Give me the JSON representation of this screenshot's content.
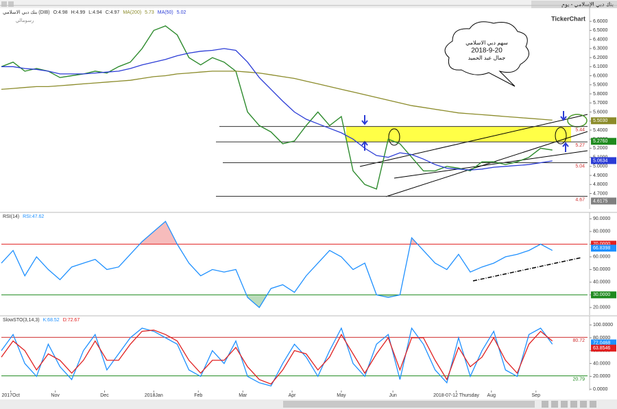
{
  "window": {
    "title": "بنك دبي الإسلامي - يوم",
    "brand": "TickerChart",
    "toolbar": "رسومالي"
  },
  "chart_data": [
    {
      "type": "line",
      "ohlc_labels": [
        "O:4.98",
        "H:4.99",
        "L:4.94",
        "C:4.97"
      ],
      "annotation": [
        "سهم دبي الاسلامي",
        "2018-9-20",
        "جمال عبد الحميد"
      ],
      "x": [
        0,
        5,
        10,
        15,
        20,
        25,
        30,
        35,
        40,
        45,
        50,
        55,
        60,
        65,
        70,
        75,
        80,
        85,
        90,
        95,
        100,
        105,
        110,
        115,
        120,
        125,
        130,
        135,
        140,
        145,
        150,
        155,
        160,
        165,
        170,
        175,
        180,
        185,
        190,
        195,
        200,
        205,
        210,
        215,
        220,
        225,
        230,
        235
      ],
      "xlim": [
        0,
        250
      ],
      "ylim": [
        4.53,
        6.76
      ],
      "yticks": [
        {
          "value": 4.7,
          "label": "4.7000"
        },
        {
          "value": 4.8,
          "label": "4.8000"
        },
        {
          "value": 4.9,
          "label": "4.9000"
        },
        {
          "value": 5.0,
          "label": "5.0000"
        },
        {
          "value": 5.1,
          "label": "5.1000"
        },
        {
          "value": 5.2,
          "label": "5.2000"
        },
        {
          "value": 5.3,
          "label": "5.3000"
        },
        {
          "value": 5.4,
          "label": "5.4000"
        },
        {
          "value": 5.5,
          "label": "5.5000"
        },
        {
          "value": 5.6,
          "label": "5.6000"
        },
        {
          "value": 5.7,
          "label": "5.7000"
        },
        {
          "value": 5.8,
          "label": "5.8000"
        },
        {
          "value": 5.9,
          "label": "5.9000"
        },
        {
          "value": 6.0,
          "label": "6.0000"
        },
        {
          "value": 6.1,
          "label": "6.1000"
        },
        {
          "value": 6.2,
          "label": "6.2000"
        },
        {
          "value": 6.3,
          "label": "6.3000"
        },
        {
          "value": 6.4,
          "label": "6.4000"
        },
        {
          "value": 6.5,
          "label": "6.5000"
        },
        {
          "value": 6.6,
          "label": "6.6000"
        }
      ],
      "series": [
        {
          "name": "بنك دبي الاسلامي (DIB)",
          "color": "#2e8b2e",
          "values": [
            6.1,
            6.15,
            6.05,
            6.08,
            6.05,
            5.98,
            6.0,
            6.02,
            6.05,
            6.03,
            6.1,
            6.15,
            6.3,
            6.5,
            6.55,
            6.45,
            6.2,
            6.12,
            6.2,
            6.15,
            6.05,
            5.6,
            5.45,
            5.38,
            5.25,
            5.28,
            5.45,
            5.6,
            5.45,
            5.55,
            4.95,
            4.8,
            4.75,
            5.3,
            5.25,
            5.1,
            4.95,
            4.95,
            5.0,
            4.98,
            4.95,
            5.05,
            5.05,
            5.02,
            5.05,
            5.1,
            5.2,
            5.18
          ]
        },
        {
          "name": "MA(200)",
          "legend_label": "5.73",
          "color": "#8b8b2a",
          "values": [
            5.85,
            5.86,
            5.87,
            5.88,
            5.88,
            5.89,
            5.9,
            5.91,
            5.92,
            5.93,
            5.94,
            5.95,
            5.97,
            5.99,
            6.0,
            6.02,
            6.03,
            6.04,
            6.05,
            6.05,
            6.05,
            6.04,
            6.03,
            6.01,
            5.99,
            5.97,
            5.94,
            5.91,
            5.88,
            5.85,
            5.82,
            5.79,
            5.76,
            5.73,
            5.7,
            5.67,
            5.65,
            5.63,
            5.61,
            5.59,
            5.58,
            5.57,
            5.56,
            5.55,
            5.54,
            5.53,
            5.52,
            5.51
          ]
        },
        {
          "name": "MA(50)",
          "legend_label": "5.02",
          "color": "#2b3cd6",
          "values": [
            6.1,
            6.1,
            6.08,
            6.07,
            6.05,
            6.02,
            6.02,
            6.02,
            6.03,
            6.04,
            6.05,
            6.08,
            6.12,
            6.15,
            6.18,
            6.22,
            6.25,
            6.27,
            6.28,
            6.3,
            6.28,
            6.15,
            5.98,
            5.85,
            5.72,
            5.6,
            5.52,
            5.47,
            5.42,
            5.37,
            5.3,
            5.2,
            5.12,
            5.1,
            5.15,
            5.13,
            5.08,
            5.02,
            4.98,
            4.97,
            4.96,
            4.97,
            4.99,
            5.0,
            5.01,
            5.02,
            5.04,
            5.06
          ]
        }
      ],
      "levels": [
        {
          "value": 5.44,
          "color": "#d03030"
        },
        {
          "value": 5.27,
          "color": "#d03030"
        },
        {
          "value": 5.04,
          "color": "#d03030"
        },
        {
          "value": 4.67,
          "color": "#d03030"
        }
      ],
      "tags": [
        {
          "value": 5.503,
          "label": "5.5030",
          "color": "#8b8b2a"
        },
        {
          "value": 5.276,
          "label": "5.2760",
          "color": "#1e8a1e"
        },
        {
          "value": 5.0634,
          "label": "5.0634",
          "color": "#2b3cd6"
        },
        {
          "value": 4.6175,
          "label": "4.6175",
          "color": "#808080"
        }
      ]
    },
    {
      "type": "line",
      "indicator": "RSI(14)",
      "x": [
        0,
        5,
        10,
        15,
        20,
        25,
        30,
        35,
        40,
        45,
        50,
        55,
        60,
        65,
        70,
        75,
        80,
        85,
        90,
        95,
        100,
        105,
        110,
        115,
        120,
        125,
        130,
        135,
        140,
        145,
        150,
        155,
        160,
        165,
        170,
        175,
        180,
        185,
        190,
        195,
        200,
        205,
        210,
        215,
        220,
        225,
        230,
        235
      ],
      "xlim": [
        0,
        250
      ],
      "ylim": [
        14,
        94
      ],
      "yticks": [
        {
          "value": 20,
          "label": "20.0000"
        },
        {
          "value": 30,
          "label": "30.0000"
        },
        {
          "value": 40,
          "label": "40.0000"
        },
        {
          "value": 50,
          "label": "50.0000"
        },
        {
          "value": 60,
          "label": "60.0000"
        },
        {
          "value": 70,
          "label": "70.0000"
        },
        {
          "value": 80,
          "label": "80.0000"
        },
        {
          "value": 90,
          "label": "90.0000"
        }
      ],
      "series": [
        {
          "legend_label": "RSI:47.62",
          "color": "#1e90ff",
          "values": [
            55,
            65,
            45,
            60,
            50,
            42,
            52,
            55,
            58,
            50,
            52,
            62,
            72,
            80,
            88,
            70,
            55,
            45,
            50,
            48,
            50,
            28,
            20,
            35,
            38,
            32,
            45,
            55,
            65,
            60,
            50,
            55,
            30,
            28,
            30,
            75,
            65,
            55,
            50,
            62,
            48,
            52,
            55,
            60,
            62,
            65,
            70,
            65
          ]
        }
      ],
      "tags": [
        {
          "value": 70,
          "label": "70.0000",
          "color": "#e02020",
          "guide": true
        },
        {
          "value": 66.8398,
          "label": "66.8398",
          "color": "#1e90ff"
        },
        {
          "value": 30,
          "label": "30.0000",
          "color": "#1e8a1e",
          "guide": true
        }
      ]
    },
    {
      "type": "line",
      "indicator": "SlowSTO(3,14,3)",
      "x": [
        0,
        5,
        10,
        15,
        20,
        25,
        30,
        35,
        40,
        45,
        50,
        55,
        60,
        65,
        70,
        75,
        80,
        85,
        90,
        95,
        100,
        105,
        110,
        115,
        120,
        125,
        130,
        135,
        140,
        145,
        150,
        155,
        160,
        165,
        170,
        175,
        180,
        185,
        190,
        195,
        200,
        205,
        210,
        215,
        220,
        225,
        230,
        235
      ],
      "xlim": [
        0,
        250
      ],
      "ylim": [
        -2,
        112
      ],
      "yticks": [
        {
          "value": 0,
          "label": "0.0000"
        },
        {
          "value": 20,
          "label": "20.0000"
        },
        {
          "value": 40,
          "label": "40.0000"
        },
        {
          "value": 60,
          "label": "60.0000"
        },
        {
          "value": 80,
          "label": "80.0000"
        },
        {
          "value": 100,
          "label": "100.0000"
        }
      ],
      "xticks": [
        {
          "value": 4,
          "label": "2017Oct"
        },
        {
          "value": 23,
          "label": "Nov"
        },
        {
          "value": 44,
          "label": "Dec"
        },
        {
          "value": 65,
          "label": "2018Jan"
        },
        {
          "value": 84,
          "label": "Feb"
        },
        {
          "value": 103,
          "label": "Mar"
        },
        {
          "value": 124,
          "label": "Apr"
        },
        {
          "value": 145,
          "label": "May"
        },
        {
          "value": 167,
          "label": "Jun"
        },
        {
          "value": 194,
          "label": "2018-07-12 Thursday"
        },
        {
          "value": 209,
          "label": "Aug"
        },
        {
          "value": 228,
          "label": "Sep"
        }
      ],
      "series": [
        {
          "legend_label": "K:68.52",
          "color": "#1e90ff",
          "values": [
            60,
            85,
            40,
            20,
            70,
            35,
            15,
            60,
            85,
            30,
            55,
            80,
            95,
            90,
            80,
            70,
            30,
            20,
            60,
            40,
            75,
            20,
            10,
            5,
            40,
            70,
            50,
            20,
            60,
            95,
            40,
            20,
            70,
            85,
            15,
            95,
            70,
            30,
            10,
            80,
            20,
            60,
            90,
            30,
            20,
            85,
            95,
            70
          ]
        },
        {
          "legend_label": "D:72.67",
          "color": "#e02020",
          "values": [
            50,
            75,
            60,
            30,
            55,
            45,
            25,
            45,
            75,
            45,
            45,
            70,
            90,
            92,
            85,
            75,
            45,
            25,
            45,
            45,
            65,
            35,
            15,
            8,
            30,
            60,
            55,
            30,
            50,
            85,
            55,
            25,
            55,
            80,
            30,
            80,
            80,
            45,
            15,
            65,
            35,
            50,
            80,
            45,
            25,
            70,
            90,
            75
          ]
        }
      ],
      "levels": [
        {
          "value": 80.72,
          "color": "#d03030"
        },
        {
          "value": 20.79,
          "color": "#1e8a1e"
        }
      ],
      "tags": [
        {
          "value": 72.0468,
          "label": "72.0468",
          "color": "#1e90ff"
        },
        {
          "value": 63.8546,
          "label": "63.8546",
          "color": "#e02020"
        }
      ]
    }
  ]
}
